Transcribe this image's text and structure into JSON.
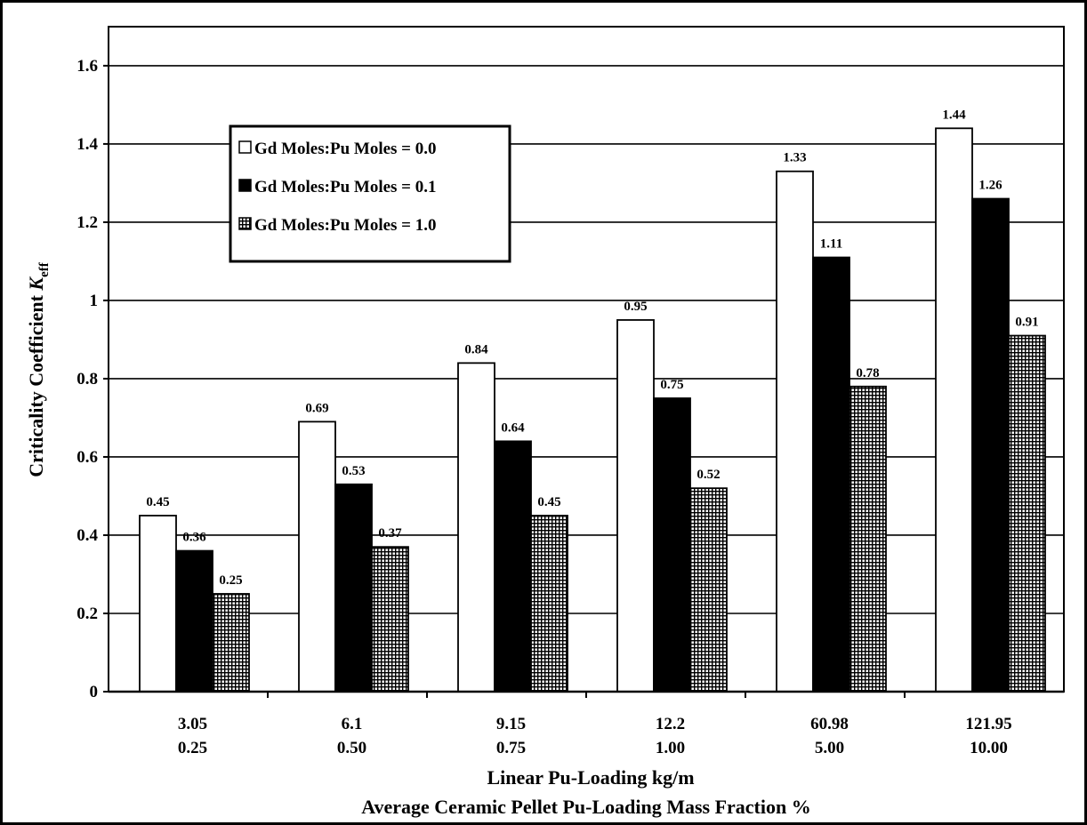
{
  "chart_data": {
    "type": "bar",
    "categories": [
      {
        "line1": "3.05",
        "line2": "0.25"
      },
      {
        "line1": "6.1",
        "line2": "0.50"
      },
      {
        "line1": "9.15",
        "line2": "0.75"
      },
      {
        "line1": "12.2",
        "line2": "1.00"
      },
      {
        "line1": "60.98",
        "line2": "5.00"
      },
      {
        "line1": "121.95",
        "line2": "10.00"
      }
    ],
    "series": [
      {
        "name": "Gd Moles:Pu Moles = 0.0",
        "fill": "white",
        "values": [
          0.45,
          0.69,
          0.84,
          0.95,
          1.33,
          1.44
        ],
        "labels": [
          "0.45",
          "0.69",
          "0.84",
          "0.95",
          "1.33",
          "1.44"
        ]
      },
      {
        "name": "Gd Moles:Pu Moles = 0.1",
        "fill": "black",
        "values": [
          0.36,
          0.53,
          0.64,
          0.75,
          1.11,
          1.26
        ],
        "labels": [
          "0.36",
          "0.53",
          "0.64",
          "0.75",
          "1.11",
          "1.26"
        ]
      },
      {
        "name": "Gd Moles:Pu Moles = 1.0",
        "fill": "hatched",
        "values": [
          0.25,
          0.37,
          0.45,
          0.52,
          0.78,
          0.91
        ],
        "labels": [
          "0.25",
          "0.37",
          "0.45",
          "0.52",
          "0.78",
          "0.91"
        ]
      }
    ],
    "title": "",
    "xlabel": "Linear Pu-Loading kg/m",
    "xlabel2": "Average Ceramic Pellet Pu-Loading Mass Fraction %",
    "ylabel": "Criticality Coefficient",
    "ylabel_symbol": "K",
    "ylabel_subscript": "eff",
    "ylim": [
      0,
      1.6
    ],
    "yticks": [
      0,
      0.2,
      0.4,
      0.6,
      0.8,
      1,
      1.2,
      1.4,
      1.6
    ],
    "ytick_labels": [
      "0",
      "0.2",
      "0.4",
      "0.6",
      "0.8",
      "1",
      "1.2",
      "1.4",
      "1.6"
    ],
    "grid": true,
    "legend_position": "top-left"
  }
}
